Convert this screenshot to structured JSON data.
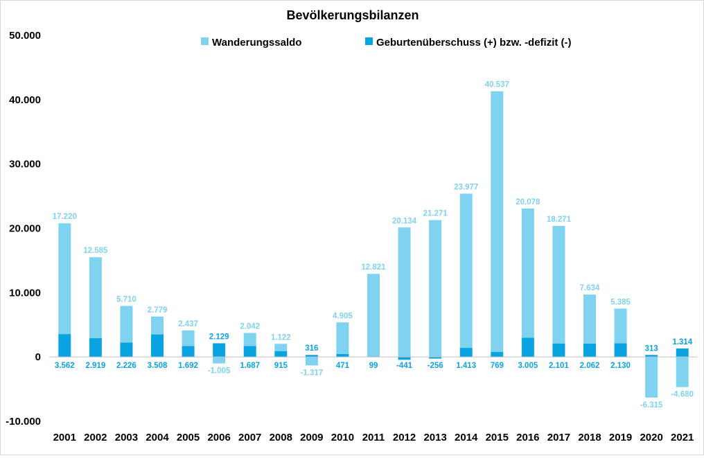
{
  "chart_data": {
    "type": "bar",
    "stacked": true,
    "title": "Bevölkerungsbilanzen",
    "xlabel": "",
    "ylabel": "",
    "ylim": [
      -10000,
      50000
    ],
    "yticks": [
      -10000,
      0,
      10000,
      20000,
      30000,
      40000,
      50000
    ],
    "ytick_labels": [
      "-10.000",
      "0",
      "10.000",
      "20.000",
      "30.000",
      "40.000",
      "50.000"
    ],
    "grid": false,
    "legend_position": "top",
    "categories": [
      "2001",
      "2002",
      "2003",
      "2004",
      "2005",
      "2006",
      "2007",
      "2008",
      "2009",
      "2010",
      "2011",
      "2012",
      "2013",
      "2014",
      "2015",
      "2016",
      "2017",
      "2018",
      "2019",
      "2020",
      "2021"
    ],
    "series": [
      {
        "name": "Wanderungssaldo",
        "color": "#7fd3f0",
        "values": [
          17220,
          12585,
          5710,
          2779,
          2437,
          -1005,
          2042,
          1122,
          -1317,
          4905,
          12821,
          20134,
          21271,
          23977,
          40537,
          20078,
          18271,
          7634,
          5385,
          -6315,
          -4680
        ],
        "labels": [
          "17.220",
          "12.585",
          "5.710",
          "2.779",
          "2.437",
          "-1.005",
          "2.042",
          "1.122",
          "-1.317",
          "4.905",
          "12.821",
          "20.134",
          "21.271",
          "23.977",
          "40.537",
          "20.078",
          "18.271",
          "7.634",
          "5.385",
          "-6.315",
          "-4.680"
        ]
      },
      {
        "name": "Geburtenüberschuss (+) bzw. -defizit (-)",
        "color": "#0aa3e2",
        "values": [
          3562,
          2919,
          2226,
          3508,
          1692,
          2129,
          1687,
          915,
          316,
          471,
          99,
          -441,
          -256,
          1413,
          769,
          3005,
          2101,
          2062,
          2130,
          313,
          1314
        ],
        "labels": [
          "3.562",
          "2.919",
          "2.226",
          "3.508",
          "1.692",
          "2.129",
          "1.687",
          "915",
          "316",
          "471",
          "99",
          "-441",
          "-256",
          "1.413",
          "769",
          "3.005",
          "2.101",
          "2.062",
          "2.130",
          "313",
          "1.314"
        ]
      }
    ]
  }
}
